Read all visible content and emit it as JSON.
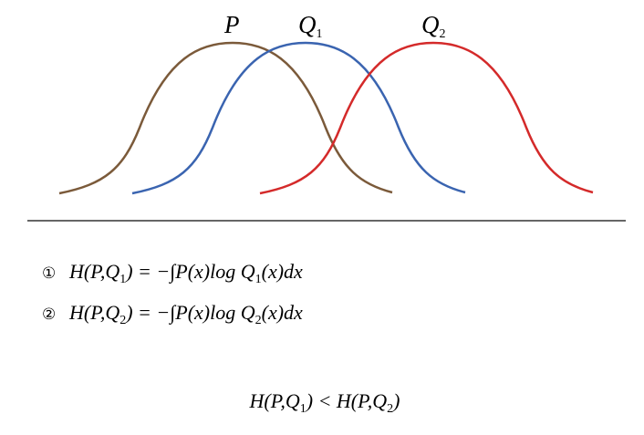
{
  "labels": [
    {
      "name": "P"
    },
    {
      "name": "Q",
      "sub": "1"
    },
    {
      "name": "Q",
      "sub": "2"
    }
  ],
  "equations": [
    {
      "marker": "①",
      "parts": [
        "H(P,Q",
        "1",
        ") = −∫P(x)log Q",
        "1",
        "(x)dx"
      ]
    },
    {
      "marker": "②",
      "parts": [
        "H(P,Q",
        "2",
        ") = −∫P(x)log Q",
        "2",
        "(x)dx"
      ]
    }
  ],
  "conclusion": [
    "H(P,Q",
    "1",
    ") < H(P,Q",
    "2",
    ")"
  ]
}
